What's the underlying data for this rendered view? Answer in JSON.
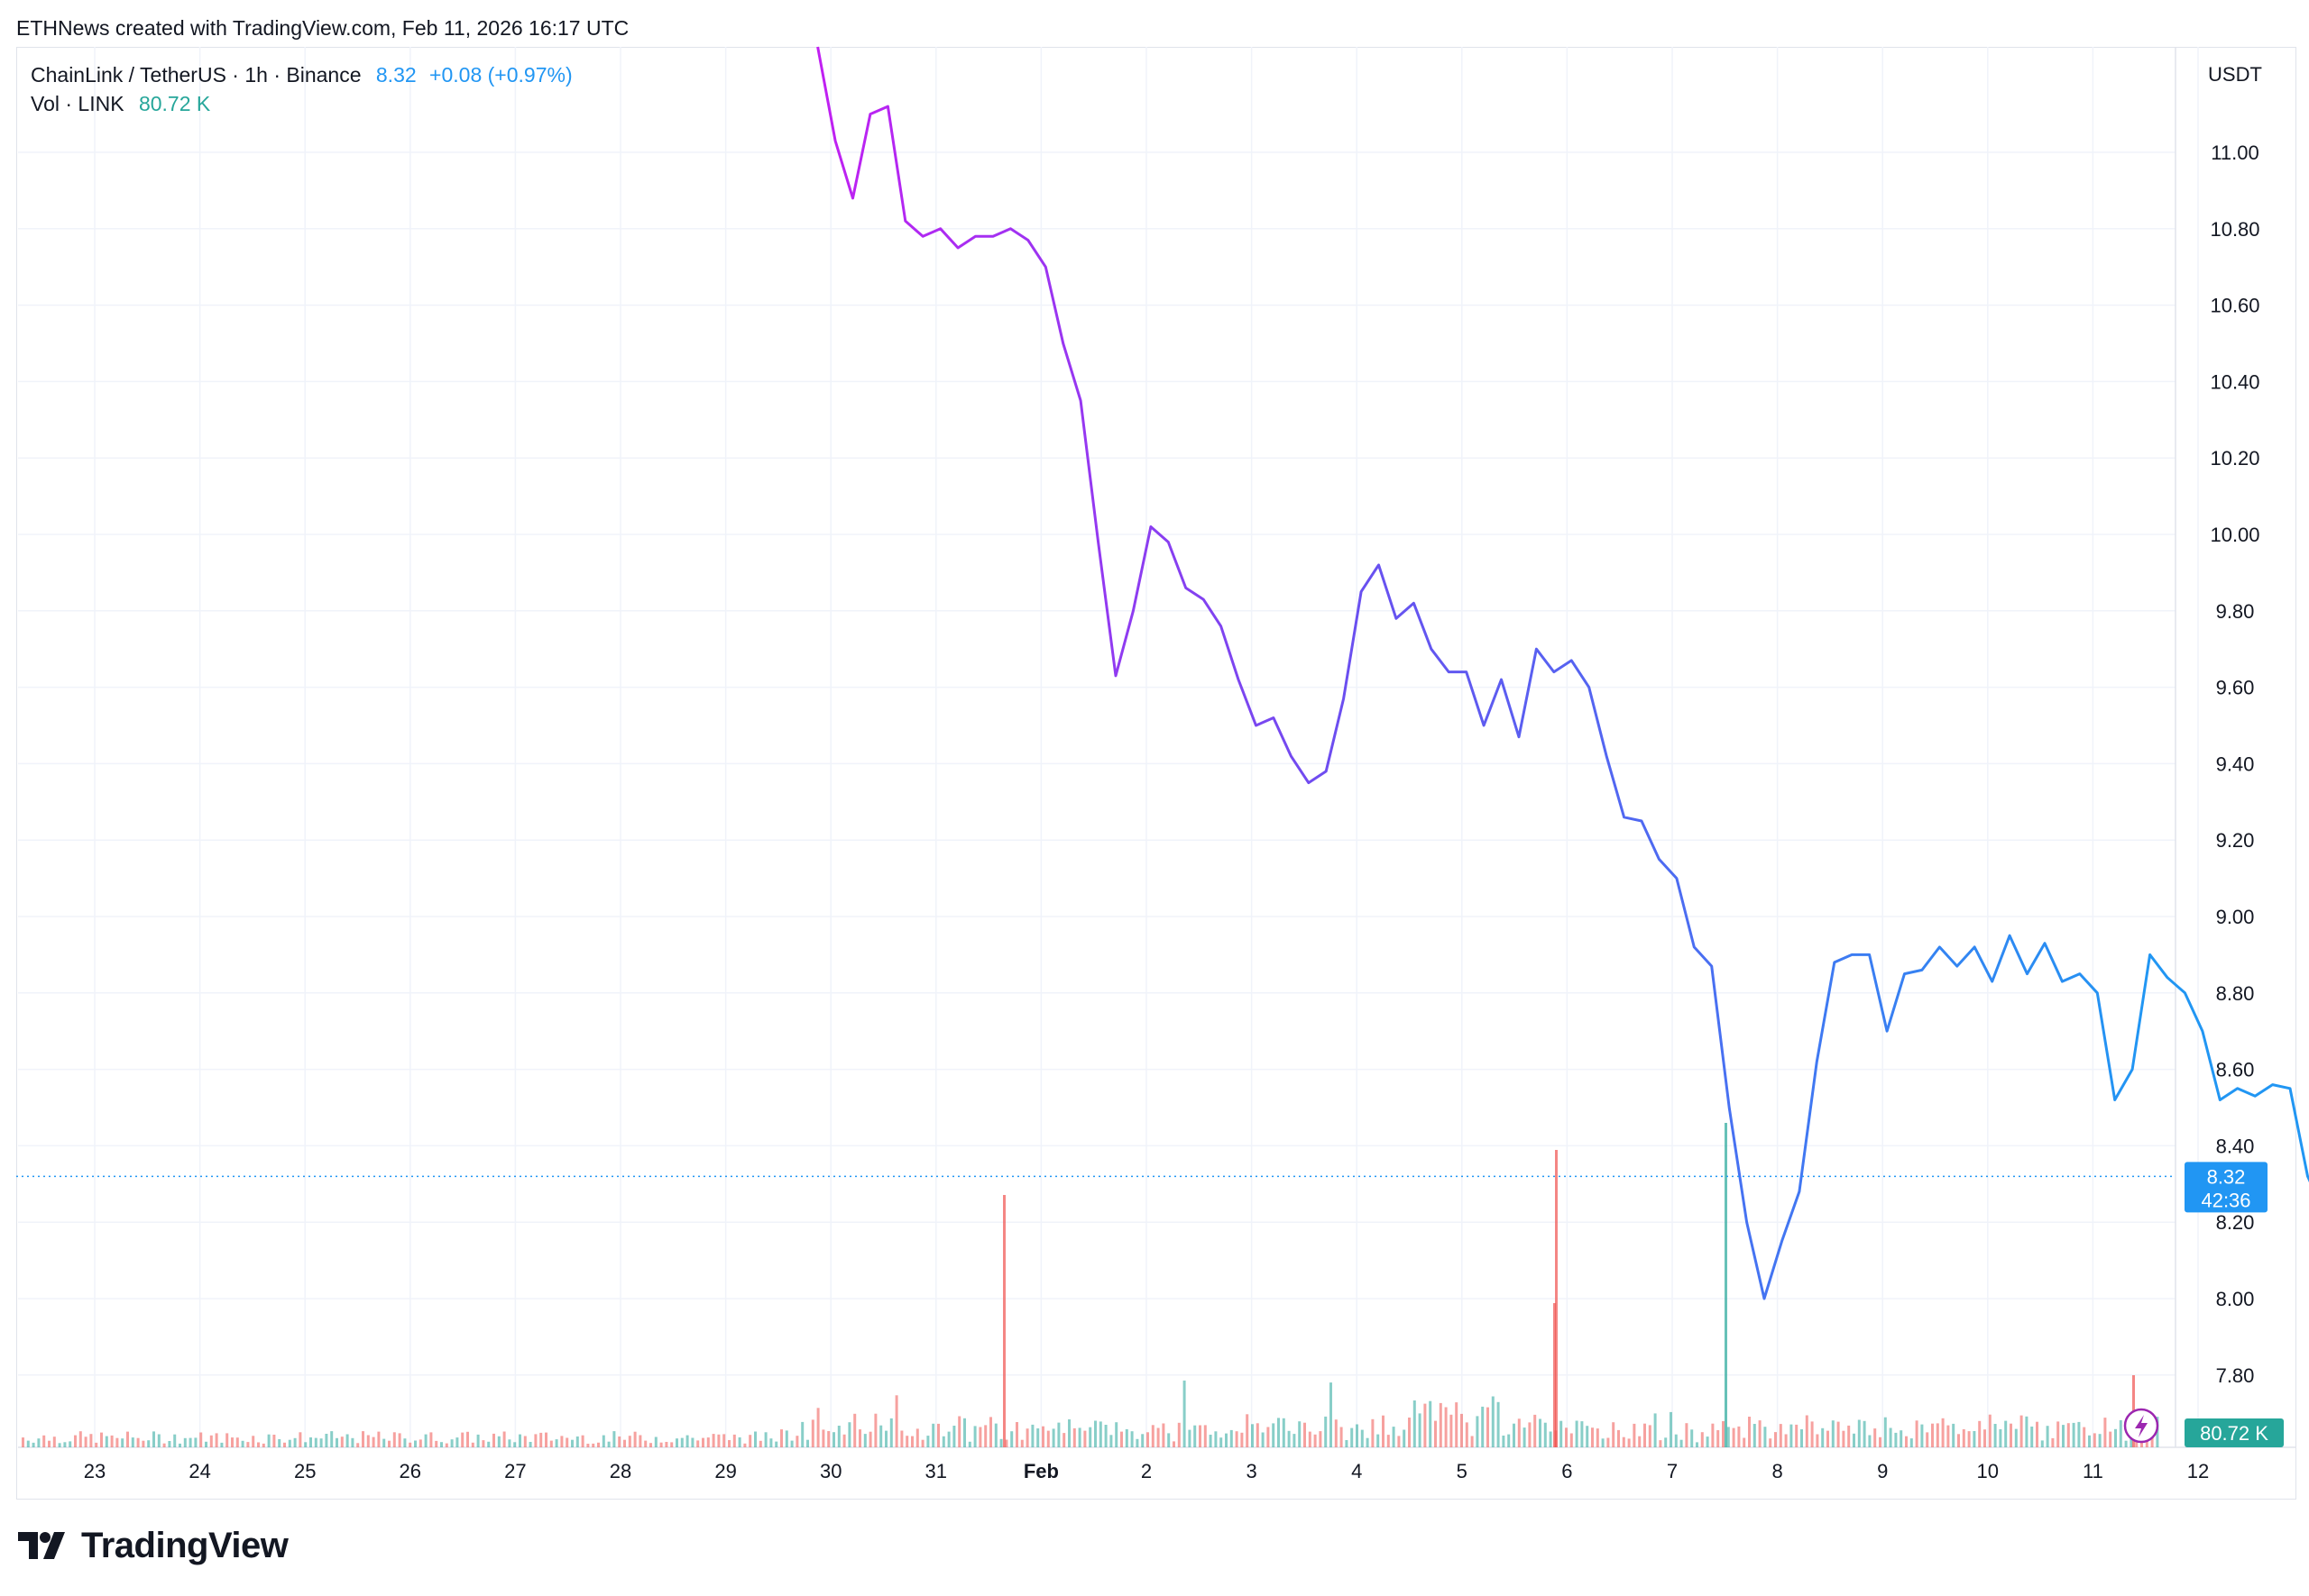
{
  "attribution": "ETHNews created with TradingView.com, Feb 11, 2026 16:17 UTC",
  "legend": {
    "symbol": "ChainLink / TetherUS · 1h · Binance",
    "price": "8.32",
    "change": "+0.08 (+0.97%)",
    "volume_label": "Vol · LINK",
    "volume_value": "80.72 K"
  },
  "footer": {
    "brand": "TradingView",
    "icon": "tradingview-logo-icon"
  },
  "colors": {
    "line_start": "#c81cf2",
    "line_mid": "#6a4ff0",
    "line_end": "#2196f3",
    "vol_up": "#26a69a",
    "vol_down": "#ef5350",
    "last_price": "#2196f3"
  },
  "chart_data": {
    "type": "line",
    "grid": true,
    "x_tick_labels": [
      "23",
      "24",
      "25",
      "26",
      "27",
      "28",
      "29",
      "30",
      "31",
      "Feb",
      "2",
      "3",
      "4",
      "5",
      "6",
      "7",
      "8",
      "9",
      "10",
      "11",
      "12"
    ],
    "y_tick_labels": [
      "7.80",
      "8.00",
      "8.20",
      "8.40",
      "8.60",
      "8.80",
      "9.00",
      "9.20",
      "9.40",
      "9.60",
      "9.80",
      "10.00",
      "10.20",
      "10.40",
      "10.60",
      "10.80",
      "11.00"
    ],
    "y_unit_label": "USDT",
    "ylim": [
      7.65,
      11.28
    ],
    "last_price_label": "8.32",
    "countdown_label": "42:36",
    "volume_axis_label": "80.72 K",
    "series": [
      {
        "x_days_start": "Jan 29 2026 21:00 UTC",
        "interval_hours": 4,
        "close": [
          11.3,
          11.03,
          10.88,
          11.1,
          11.12,
          10.82,
          10.78,
          10.8,
          10.75,
          10.78,
          10.78,
          10.8,
          10.77,
          10.7,
          10.5,
          10.35,
          9.98,
          9.63,
          9.8,
          10.02,
          9.98,
          9.86,
          9.83,
          9.76,
          9.62,
          9.5,
          9.52,
          9.42,
          9.35,
          9.38,
          9.57,
          9.85,
          9.92,
          9.78,
          9.82,
          9.7,
          9.64,
          9.64,
          9.5,
          9.62,
          9.47,
          9.7,
          9.64,
          9.67,
          9.6,
          9.42,
          9.26,
          9.25,
          9.15,
          9.1,
          8.92,
          8.87,
          8.5,
          8.2,
          8.0,
          8.15,
          8.28,
          8.62,
          8.88,
          8.9,
          8.9,
          8.7,
          8.85,
          8.86,
          8.92,
          8.87,
          8.92,
          8.83,
          8.95,
          8.85,
          8.93,
          8.83,
          8.85,
          8.8,
          8.52,
          8.6,
          8.9,
          8.84,
          8.8,
          8.7,
          8.52,
          8.55,
          8.53,
          8.56,
          8.55,
          8.32,
          8.22,
          8.32
        ]
      }
    ]
  }
}
